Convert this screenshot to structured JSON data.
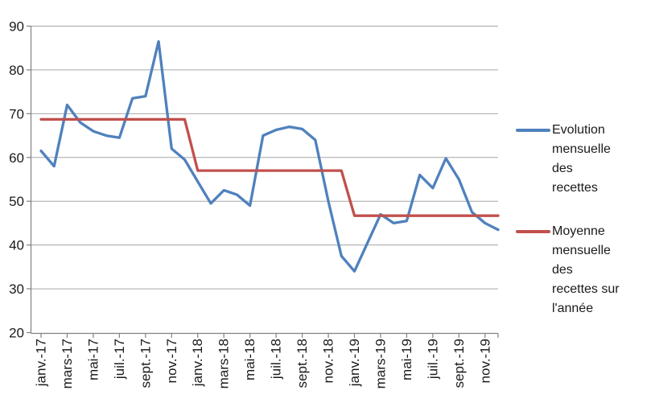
{
  "chart_data": {
    "type": "line",
    "title": "",
    "n_points": 36,
    "x_label_interval": 2,
    "x_tick_labels": [
      "janv.-17",
      "mars-17",
      "mai-17",
      "juil.-17",
      "sept.-17",
      "nov.-17",
      "janv.-18",
      "mars-18",
      "mai-18",
      "juil.-18",
      "sept.-18",
      "nov.-18",
      "janv.-19",
      "mars-19",
      "mai-19",
      "juil.-19",
      "sept.-19",
      "nov.-19"
    ],
    "ylim": [
      20,
      90
    ],
    "ytick_step": 10,
    "ytick_labels": [
      "20",
      "30",
      "40",
      "50",
      "60",
      "70",
      "80",
      "90"
    ],
    "grid": "horizontal",
    "legend_position": "right",
    "colors": {
      "grid": "#A6A6A6",
      "axis": "#808080",
      "text": "#1A1A1A",
      "background": "#FFFFFF"
    },
    "series": [
      {
        "name": "Evolution mensuelle des recettes",
        "legend_label": "Evolution\nmensuelle\ndes\nrecettes",
        "color": "#4F81BD",
        "values": [
          61.5,
          58,
          72,
          68,
          66,
          65,
          64.5,
          73.5,
          74,
          86.5,
          62,
          59.5,
          54.5,
          49.5,
          52.5,
          51.5,
          49,
          65,
          66.3,
          67,
          66.5,
          64,
          50,
          37.5,
          34,
          40.5,
          47,
          45,
          45.5,
          56,
          53,
          59.8,
          55,
          47.5,
          45,
          43.5
        ]
      },
      {
        "name": "Moyenne mensuelle des recettes sur l'année",
        "legend_label": "Moyenne\nmensuelle\ndes\nrecettes sur\nl'année",
        "color": "#C0504D",
        "values": [
          68.7,
          68.7,
          68.7,
          68.7,
          68.7,
          68.7,
          68.7,
          68.7,
          68.7,
          68.7,
          68.7,
          68.7,
          57,
          57,
          57,
          57,
          57,
          57,
          57,
          57,
          57,
          57,
          57,
          57,
          46.7,
          46.7,
          46.7,
          46.7,
          46.7,
          46.7,
          46.7,
          46.7,
          46.7,
          46.7,
          46.7,
          46.7
        ]
      }
    ]
  }
}
